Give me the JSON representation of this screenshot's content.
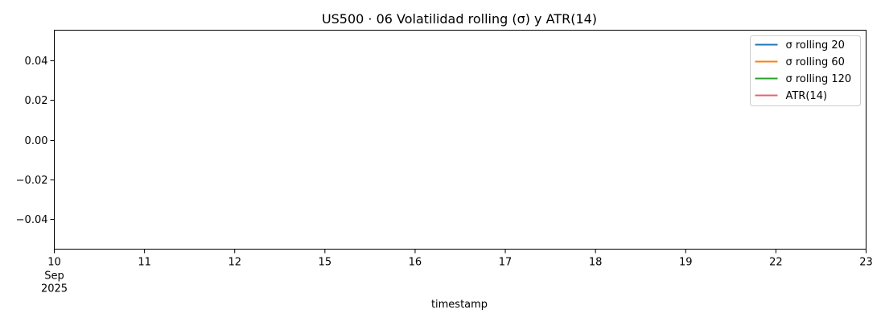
{
  "chart_data": {
    "type": "line",
    "title": "US500 · 06 Volatilidad rolling (σ) y ATR(14)",
    "xlabel": "timestamp",
    "ylabel": "",
    "x_ticks": [
      {
        "value": "2025-09-10",
        "label": "10",
        "sublabels": [
          "Sep",
          "2025"
        ]
      },
      {
        "value": "2025-09-11",
        "label": "11"
      },
      {
        "value": "2025-09-12",
        "label": "12"
      },
      {
        "value": "2025-09-15",
        "label": "15"
      },
      {
        "value": "2025-09-16",
        "label": "16"
      },
      {
        "value": "2025-09-17",
        "label": "17"
      },
      {
        "value": "2025-09-18",
        "label": "18"
      },
      {
        "value": "2025-09-19",
        "label": "19"
      },
      {
        "value": "2025-09-22",
        "label": "22"
      },
      {
        "value": "2025-09-23",
        "label": "23"
      }
    ],
    "y_ticks": [
      0.04,
      0.02,
      0.0,
      -0.02,
      -0.04
    ],
    "y_tick_labels": [
      "0.04",
      "0.02",
      "0.00",
      "−0.02",
      "−0.04"
    ],
    "ylim": [
      -0.055,
      0.055
    ],
    "xlim": [
      "2025-09-10",
      "2025-09-23"
    ],
    "grid": false,
    "legend_position": "top-right",
    "series": [
      {
        "name": "σ rolling 20",
        "color": "#1f77b4",
        "values": []
      },
      {
        "name": "σ rolling 60",
        "color": "#ff7f0e",
        "values": []
      },
      {
        "name": "σ rolling 120",
        "color": "#2ca02c",
        "values": []
      },
      {
        "name": "ATR(14)",
        "color": "#e8636f",
        "values": []
      }
    ]
  }
}
